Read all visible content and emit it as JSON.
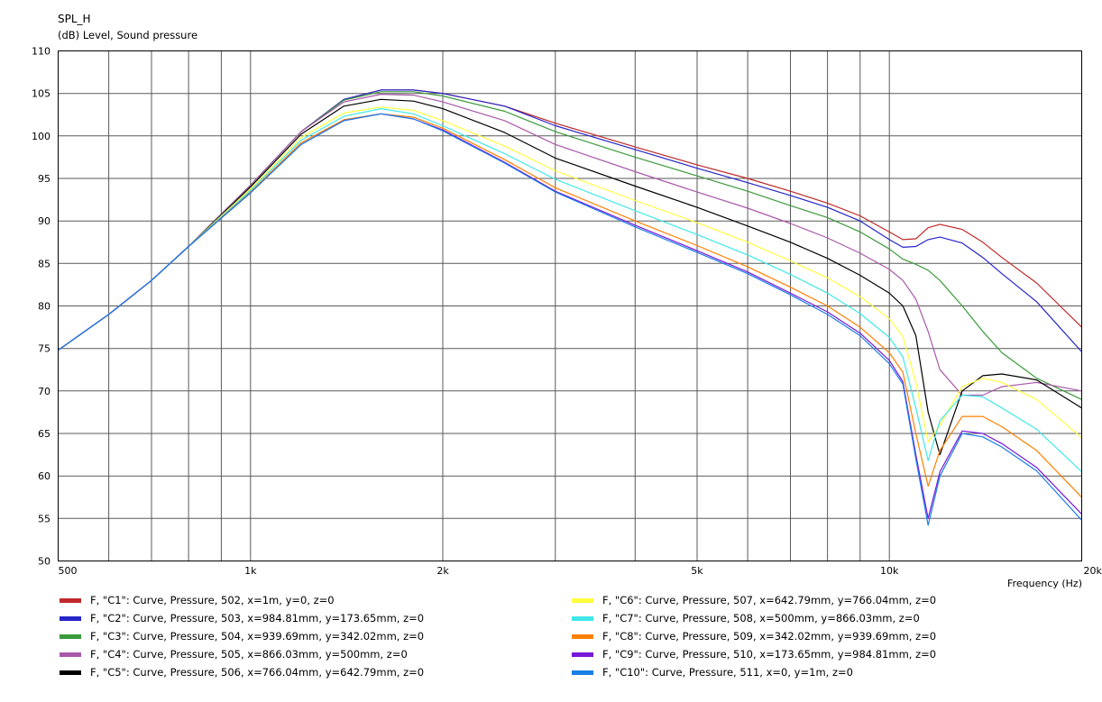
{
  "chart_data": {
    "type": "line",
    "title": "SPL_H",
    "ylabel": "(dB)  Level, Sound pressure",
    "xlabel": "Frequency  (Hz)",
    "x_scale": "log",
    "xlim": [
      500,
      20000
    ],
    "ylim": [
      50,
      110
    ],
    "grid": true,
    "legend_placement": "bottom",
    "y_ticks": [
      "110",
      "105",
      "100",
      "95",
      "90",
      "85",
      "80",
      "75",
      "70",
      "65",
      "60",
      "55",
      "50"
    ],
    "x_ticks": [
      {
        "v": 500,
        "label": "500"
      },
      {
        "v": 1000,
        "label": "1k"
      },
      {
        "v": 2000,
        "label": "2k"
      },
      {
        "v": 5000,
        "label": "5k"
      },
      {
        "v": 10000,
        "label": "10k"
      },
      {
        "v": 20000,
        "label": "20k"
      }
    ],
    "x_grid": [
      500,
      600,
      700,
      800,
      900,
      1000,
      2000,
      3000,
      4000,
      5000,
      6000,
      7000,
      8000,
      9000,
      10000,
      20000
    ],
    "x": [
      500,
      600,
      700,
      800,
      1000,
      1200,
      1400,
      1600,
      1800,
      2000,
      2500,
      3000,
      4000,
      5000,
      6000,
      7000,
      8000,
      9000,
      10000,
      10500,
      11000,
      11500,
      12000,
      13000,
      14000,
      15000,
      17000,
      20000
    ],
    "series": [
      {
        "name": "F, \"C1\": Curve, Pressure, 502, x=1m, y=0, z=0",
        "color": "#c0292a",
        "values": [
          74.8,
          79.0,
          83.0,
          87.0,
          94.2,
          100.5,
          104.3,
          105.4,
          105.4,
          105.0,
          103.5,
          101.5,
          98.7,
          96.6,
          95.0,
          93.5,
          92.1,
          90.6,
          88.7,
          87.8,
          87.9,
          89.2,
          89.6,
          89.0,
          87.5,
          85.7,
          82.7,
          77.5
        ]
      },
      {
        "name": "F, \"C2\": Curve, Pressure, 503, x=984.81mm, y=173.65mm, z=0",
        "color": "#2525c8",
        "values": [
          74.8,
          79.0,
          83.0,
          87.0,
          94.2,
          100.5,
          104.3,
          105.4,
          105.4,
          105.0,
          103.5,
          101.2,
          98.4,
          96.2,
          94.5,
          93.0,
          91.6,
          90.0,
          87.8,
          86.9,
          87.0,
          87.8,
          88.1,
          87.4,
          85.7,
          83.8,
          80.5,
          74.6
        ]
      },
      {
        "name": "F, \"C3\": Curve, Pressure, 504, x=939.69mm, y=342.02mm, z=0",
        "color": "#3b9a3b",
        "values": [
          74.8,
          79.0,
          83.0,
          87.0,
          94.2,
          100.5,
          104.2,
          105.2,
          105.2,
          104.7,
          102.9,
          100.5,
          97.5,
          95.3,
          93.5,
          91.8,
          90.4,
          88.7,
          86.7,
          85.5,
          84.9,
          84.2,
          83.0,
          80.0,
          77.0,
          74.5,
          71.5,
          69.0
        ]
      },
      {
        "name": "F, \"C4\": Curve, Pressure, 505, x=866.03mm, y=500mm, z=0",
        "color": "#a959a9",
        "values": [
          74.8,
          79.0,
          83.0,
          87.0,
          94.2,
          100.5,
          104.0,
          104.9,
          104.8,
          104.0,
          101.8,
          99.0,
          95.8,
          93.4,
          91.5,
          89.7,
          88.0,
          86.2,
          84.3,
          83.0,
          80.8,
          77.0,
          72.5,
          69.5,
          69.5,
          70.5,
          71.0,
          70.0
        ]
      },
      {
        "name": "F, \"C5\": Curve, Pressure, 506, x=766.04mm, y=642.79mm, z=0",
        "color": "#000000",
        "values": [
          74.8,
          79.0,
          83.0,
          87.0,
          94.0,
          100.2,
          103.5,
          104.3,
          104.1,
          103.2,
          100.4,
          97.4,
          94.1,
          91.6,
          89.4,
          87.5,
          85.6,
          83.6,
          81.5,
          80.0,
          76.5,
          67.5,
          62.5,
          70.0,
          71.8,
          72.0,
          71.3,
          68.0
        ]
      },
      {
        "name": "F, \"C6\": Curve, Pressure, 507, x=642.79mm, y=766.04mm, z=0",
        "color": "#ffff40",
        "values": [
          74.8,
          79.0,
          83.0,
          87.0,
          93.8,
          99.8,
          102.7,
          103.4,
          103.0,
          101.8,
          98.8,
          95.9,
          92.4,
          89.8,
          87.5,
          85.3,
          83.3,
          81.1,
          78.5,
          76.4,
          71.0,
          64.0,
          66.0,
          70.5,
          71.5,
          71.0,
          69.0,
          64.5
        ]
      },
      {
        "name": "F, \"C7\": Curve, Pressure, 508, x=500mm, y=866.03mm, z=0",
        "color": "#40e8e8",
        "values": [
          74.8,
          79.0,
          83.0,
          87.0,
          93.6,
          99.5,
          102.3,
          103.2,
          102.6,
          101.2,
          97.9,
          94.9,
          91.2,
          88.4,
          86.0,
          83.7,
          81.5,
          79.1,
          76.3,
          74.0,
          68.0,
          61.8,
          66.5,
          69.5,
          69.3,
          68.0,
          65.5,
          60.5
        ]
      },
      {
        "name": "F, \"C8\": Curve, Pressure, 509, x=342.02mm, y=939.69mm, z=0",
        "color": "#ff8000",
        "values": [
          74.8,
          79.0,
          83.0,
          87.0,
          93.4,
          99.2,
          101.9,
          102.6,
          102.2,
          100.9,
          97.2,
          93.9,
          90.0,
          87.1,
          84.6,
          82.2,
          80.0,
          77.5,
          74.5,
          72.2,
          65.0,
          58.8,
          63.0,
          67.0,
          67.0,
          65.8,
          63.0,
          57.5
        ]
      },
      {
        "name": "F, \"C9\": Curve, Pressure, 510, x=173.65mm, y=984.81mm, z=0",
        "color": "#7818d8",
        "values": [
          74.8,
          79.0,
          83.0,
          87.0,
          93.3,
          99.0,
          101.8,
          102.6,
          102.0,
          100.7,
          96.9,
          93.5,
          89.5,
          86.5,
          84.0,
          81.5,
          79.3,
          76.8,
          73.6,
          71.1,
          62.5,
          55.0,
          60.5,
          65.3,
          65.0,
          63.8,
          61.0,
          55.5
        ]
      },
      {
        "name": "F, \"C10\": Curve, Pressure, 511, x=0, y=1m, z=0",
        "color": "#1a7ee8",
        "values": [
          74.8,
          79.0,
          83.0,
          87.0,
          93.3,
          99.0,
          101.8,
          102.6,
          102.0,
          100.6,
          96.8,
          93.4,
          89.3,
          86.3,
          83.8,
          81.3,
          79.0,
          76.5,
          73.2,
          70.8,
          62.0,
          54.2,
          60.0,
          65.0,
          64.6,
          63.4,
          60.6,
          54.8
        ]
      }
    ]
  }
}
